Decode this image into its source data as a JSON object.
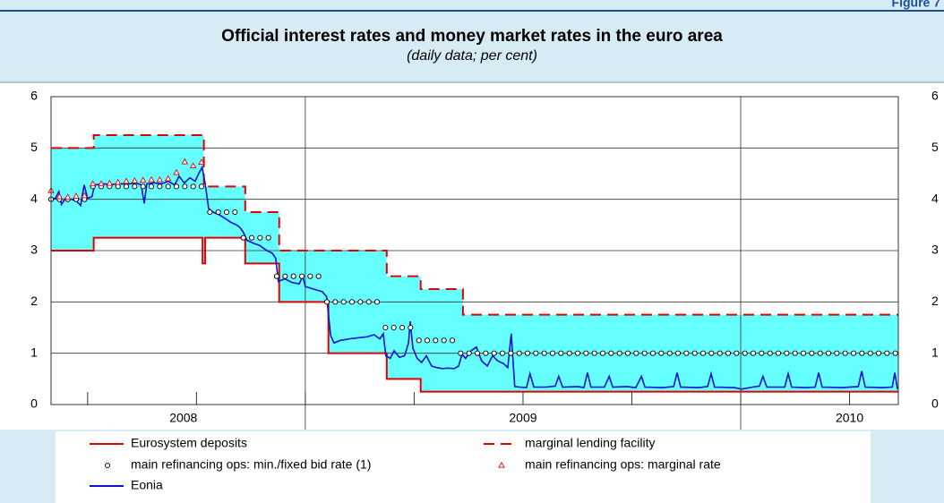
{
  "figure_label": "Figure 7",
  "chart_data": {
    "type": "line",
    "title": "Official interest rates and money market rates in the euro area",
    "subtitle": "(daily data; per cent)",
    "xlim": [
      2008.416,
      2010.362
    ],
    "xticks": [
      2008.5,
      2008.75,
      2009,
      2009.25,
      2009.5,
      2009.75,
      2010,
      2010.25
    ],
    "x_major_ticks": [
      2009,
      2010
    ],
    "x_labels": [
      {
        "value": 2008.72,
        "label": "2008"
      },
      {
        "value": 2009.5,
        "label": "2009"
      },
      {
        "value": 2010.25,
        "label": "2010"
      }
    ],
    "ylim": [
      0,
      6
    ],
    "yticks": [
      0,
      1,
      2,
      3,
      4,
      5,
      6
    ],
    "y2lim": [
      0,
      6
    ],
    "y2ticks": [
      0,
      1,
      2,
      3,
      4,
      5,
      6
    ],
    "grid": true,
    "corridor_color": "#66ffff",
    "series": [
      {
        "name": "Eurosystem deposits",
        "color": "#e00000",
        "style": "step",
        "x": [
          2008.416,
          2008.514,
          2008.764,
          2008.77,
          2008.862,
          2008.94,
          2009.053,
          2009.187,
          2009.265,
          2010.362
        ],
        "values": [
          3,
          3.25,
          2.75,
          3.25,
          2.75,
          2,
          1,
          0.5,
          0.25,
          0.25
        ]
      },
      {
        "name": "marginal lending facility",
        "color": "#e00000",
        "style": "step",
        "dash": true,
        "x": [
          2008.416,
          2008.514,
          2008.767,
          2008.862,
          2008.94,
          2009.187,
          2009.265,
          2009.362,
          2010.362
        ],
        "values": [
          5,
          5.25,
          4.25,
          3.75,
          3,
          2.5,
          2.25,
          1.75,
          1.75
        ]
      },
      {
        "name": "main refinancing ops: min./fixed bid rate (1)",
        "color": "#000000",
        "style": "marker",
        "marker": "circle",
        "x": [
          2008.416,
          2008.4352,
          2008.4544,
          2008.4736,
          2008.4928,
          2008.512,
          2008.5312,
          2008.5504,
          2008.5696,
          2008.5888,
          2008.608,
          2008.6272,
          2008.6464,
          2008.6656,
          2008.6848,
          2008.704,
          2008.7232,
          2008.7424,
          2008.7616,
          2008.7808,
          2008.8,
          2008.8192,
          2008.8384,
          2008.8576,
          2008.8768,
          2008.896,
          2008.9152,
          2008.9344,
          2008.9536,
          2008.9728,
          2008.992,
          2009.0112,
          2009.0304,
          2009.0496,
          2009.0688,
          2009.088,
          2009.1072,
          2009.1264,
          2009.1456,
          2009.1648,
          2009.184,
          2009.2032,
          2009.2224,
          2009.2416,
          2009.2608,
          2009.28,
          2009.2992,
          2009.3184,
          2009.3376,
          2009.3568,
          2009.376,
          2009.3952,
          2009.4144,
          2009.4336,
          2009.4528,
          2009.472,
          2009.4912,
          2009.5104,
          2009.5296,
          2009.5488,
          2009.568,
          2009.5872,
          2009.6064,
          2009.6256,
          2009.6448,
          2009.664,
          2009.6832,
          2009.7024,
          2009.7216,
          2009.7408,
          2009.76,
          2009.7792,
          2009.7984,
          2009.8176,
          2009.8368,
          2009.856,
          2009.8752,
          2009.8944,
          2009.9136,
          2009.9328,
          2009.952,
          2009.9712,
          2009.9904,
          2010.0096,
          2010.0288,
          2010.048,
          2010.0672,
          2010.0864,
          2010.1056,
          2010.1248,
          2010.144,
          2010.1632,
          2010.1824,
          2010.2016,
          2010.2208,
          2010.24,
          2010.2592,
          2010.2784,
          2010.2976,
          2010.3168,
          2010.336,
          2010.3552
        ],
        "values": [
          4,
          4,
          4,
          4,
          4,
          4.25,
          4.25,
          4.25,
          4.25,
          4.25,
          4.25,
          4.25,
          4.25,
          4.25,
          4.25,
          4.25,
          4.25,
          4.25,
          4.25,
          3.75,
          3.75,
          3.75,
          3.75,
          3.25,
          3.25,
          3.25,
          3.25,
          2.5,
          2.5,
          2.5,
          2.5,
          2.5,
          2.5,
          2,
          2,
          2,
          2,
          2,
          2,
          2,
          1.5,
          1.5,
          1.5,
          1.5,
          1.25,
          1.25,
          1.25,
          1.25,
          1.25,
          1,
          1,
          1,
          1,
          1,
          1,
          1,
          1,
          1,
          1,
          1,
          1,
          1,
          1,
          1,
          1,
          1,
          1,
          1,
          1,
          1,
          1,
          1,
          1,
          1,
          1,
          1,
          1,
          1,
          1,
          1,
          1,
          1,
          1,
          1,
          1,
          1,
          1,
          1,
          1,
          1,
          1,
          1,
          1,
          1,
          1,
          1,
          1,
          1,
          1,
          1,
          1,
          1
        ]
      },
      {
        "name": "main refinancing ops: marginal rate",
        "color": "#e00000",
        "style": "marker",
        "marker": "triangle",
        "x": [
          2008.416,
          2008.4352,
          2008.4544,
          2008.4736,
          2008.4928,
          2008.512,
          2008.5312,
          2008.5504,
          2008.5696,
          2008.5888,
          2008.608,
          2008.6272,
          2008.6464,
          2008.6656,
          2008.6848,
          2008.704,
          2008.7232,
          2008.7424,
          2008.7616
        ],
        "values": [
          4.17,
          4.05,
          4.04,
          4.06,
          4.07,
          4.3,
          4.3,
          4.31,
          4.33,
          4.35,
          4.36,
          4.37,
          4.38,
          4.38,
          4.4,
          4.52,
          4.73,
          4.65,
          4.72
        ]
      },
      {
        "name": "Eonia",
        "color": "#1010d0",
        "style": "line",
        "x": [
          2008.416,
          2008.426,
          2008.434,
          2008.44,
          2008.449,
          2008.463,
          2008.475,
          2008.484,
          2008.492,
          2008.5,
          2008.51,
          2008.516,
          2008.535,
          2008.556,
          2008.576,
          2008.597,
          2008.611,
          2008.623,
          2008.63,
          2008.636,
          2008.652,
          2008.669,
          2008.685,
          2008.7,
          2008.71,
          2008.722,
          2008.735,
          2008.747,
          2008.755,
          2008.763,
          2008.77,
          2008.778,
          2008.788,
          2008.802,
          2008.817,
          2008.829,
          2008.842,
          2008.85,
          2008.858,
          2008.866,
          2008.879,
          2008.895,
          2008.912,
          2008.924,
          2008.932,
          2008.938,
          2008.953,
          2008.969,
          2008.986,
          2008.994,
          2009.0,
          2009.019,
          2009.039,
          2009.049,
          2009.058,
          2009.066,
          2009.08,
          2009.101,
          2009.121,
          2009.142,
          2009.158,
          2009.171,
          2009.179,
          2009.185,
          2009.195,
          2009.204,
          2009.216,
          2009.228,
          2009.237,
          2009.241,
          2009.247,
          2009.257,
          2009.267,
          2009.278,
          2009.29,
          2009.302,
          2009.315,
          2009.327,
          2009.342,
          2009.352,
          2009.36,
          2009.368,
          2009.381,
          2009.393,
          2009.405,
          2009.418,
          2009.43,
          2009.442,
          2009.455,
          2009.465,
          2009.473,
          2009.481,
          2009.492,
          2009.508,
          2009.516,
          2009.525,
          2009.553,
          2009.574,
          2009.582,
          2009.591,
          2009.626,
          2009.64,
          2009.648,
          2009.656,
          2009.687,
          2009.698,
          2009.706,
          2009.739,
          2009.759,
          2009.772,
          2009.78,
          2009.821,
          2009.846,
          2009.854,
          2009.862,
          2009.903,
          2009.924,
          2009.932,
          2009.94,
          2009.986,
          2010.002,
          2010.027,
          2010.043,
          2010.051,
          2010.06,
          2010.101,
          2010.109,
          2010.117,
          2010.15,
          2010.171,
          2010.179,
          2010.187,
          2010.233,
          2010.27,
          2010.278,
          2010.286,
          2010.325,
          2010.348,
          2010.354,
          2010.36
        ],
        "values": [
          4.0,
          4.02,
          4.15,
          3.9,
          4.02,
          4.0,
          3.96,
          3.88,
          4.28,
          4.02,
          4.05,
          4.28,
          4.3,
          4.29,
          4.3,
          4.3,
          4.32,
          4.28,
          3.92,
          4.3,
          4.32,
          4.3,
          4.35,
          4.28,
          4.45,
          4.32,
          4.42,
          4.35,
          4.5,
          4.62,
          4.3,
          3.82,
          3.75,
          3.7,
          3.62,
          3.55,
          3.5,
          3.45,
          3.35,
          3.2,
          3.15,
          3.1,
          3.0,
          2.95,
          2.85,
          2.4,
          2.45,
          2.38,
          2.35,
          2.5,
          2.3,
          2.25,
          2.2,
          2.1,
          1.35,
          1.2,
          1.25,
          1.28,
          1.3,
          1.32,
          1.36,
          1.28,
          1.38,
          0.95,
          0.9,
          1.05,
          0.92,
          0.95,
          1.2,
          1.62,
          1.1,
          0.9,
          0.82,
          0.95,
          0.75,
          0.72,
          0.7,
          0.71,
          0.7,
          0.75,
          0.98,
          0.9,
          1.05,
          1.12,
          0.85,
          0.75,
          0.95,
          0.85,
          0.8,
          0.72,
          1.38,
          0.35,
          0.34,
          0.33,
          0.6,
          0.34,
          0.34,
          0.36,
          0.55,
          0.34,
          0.35,
          0.33,
          0.62,
          0.34,
          0.34,
          0.55,
          0.34,
          0.35,
          0.33,
          0.55,
          0.34,
          0.33,
          0.35,
          0.62,
          0.34,
          0.33,
          0.35,
          0.6,
          0.34,
          0.33,
          0.3,
          0.34,
          0.36,
          0.55,
          0.34,
          0.34,
          0.6,
          0.34,
          0.33,
          0.34,
          0.62,
          0.34,
          0.33,
          0.35,
          0.65,
          0.34,
          0.33,
          0.34,
          0.62,
          0.3
        ]
      }
    ]
  }
}
